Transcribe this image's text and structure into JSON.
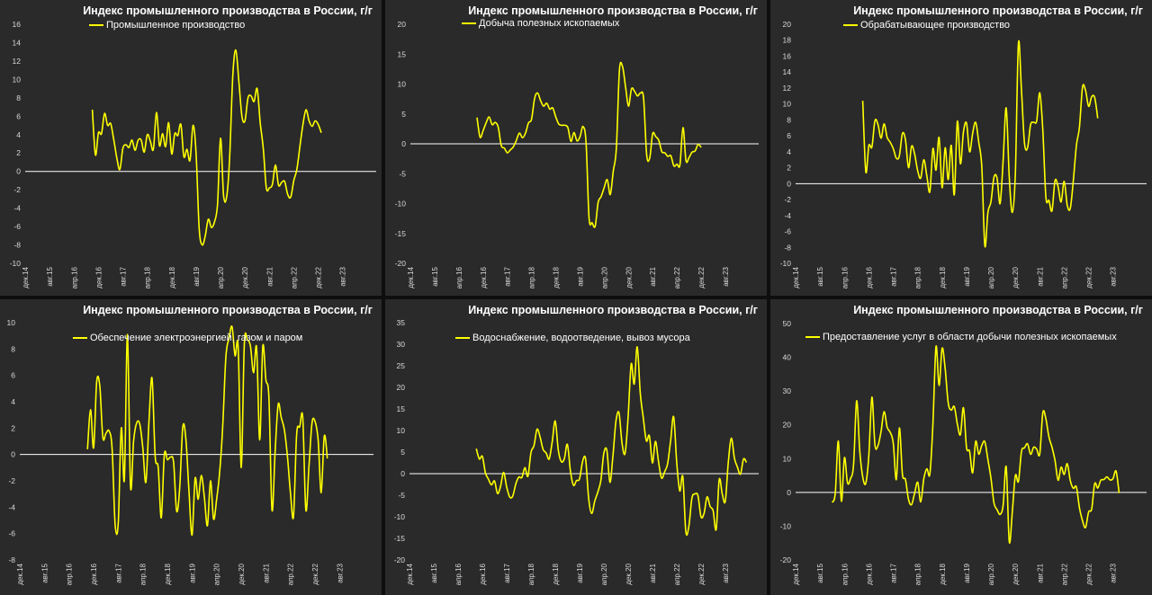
{
  "colors": {
    "line": "#ffff00",
    "zero": "#ffffff",
    "panel_bg": "#2a2a2a",
    "page_bg": "#0e0e0e",
    "text": "#ffffff"
  },
  "x_tick_labels": [
    "дек.14",
    "авг.15",
    "апр.16",
    "дек.16",
    "авг.17",
    "апр.18",
    "дек.18",
    "авг.19",
    "апр.20",
    "дек.20",
    "авг.21",
    "апр.22",
    "дек.22",
    "авг.23"
  ],
  "chart_data": [
    {
      "type": "line",
      "title": "Индекс промышленного производства в России, г/г",
      "legend": "Промышленное производство",
      "xlabel": "",
      "ylabel": "",
      "ylim": [
        -10,
        16
      ],
      "yticks": [
        -10,
        -8,
        -6,
        -4,
        -2,
        0,
        2,
        4,
        6,
        8,
        10,
        12,
        14,
        16
      ],
      "x_start": "дек.14",
      "x_end": "ноя.23",
      "series_start_index": 22,
      "series": [
        {
          "name": "Промышленное производство",
          "values": [
            6.7,
            1.8,
            4.2,
            4.1,
            6.3,
            5,
            5.2,
            3.5,
            1.5,
            0.2,
            2.5,
            2.9,
            2.6,
            3.4,
            2.3,
            3.4,
            3.4,
            2.1,
            4,
            3.3,
            2.4,
            6.4,
            2.8,
            4.1,
            2.7,
            5.3,
            1.9,
            4.1,
            3.9,
            5.1,
            1.6,
            2.4,
            1.2,
            5,
            1.9,
            -6.2,
            -8,
            -7,
            -5.2,
            -6.1,
            -5.5,
            -3.6,
            3.6,
            -2.6,
            -2.8,
            1.6,
            10.3,
            13.2,
            9.8,
            6,
            5.5,
            8,
            8.2,
            7.6,
            9,
            5.3,
            2.5,
            -1.8,
            -1.8,
            -1.4,
            0.7,
            -1.5,
            -1.2,
            -1.1,
            -2.5,
            -2.8,
            -1,
            0.2,
            2.7,
            5.1,
            6.7,
            5.5,
            4.9,
            5.5,
            5.1,
            4.2
          ]
        }
      ]
    },
    {
      "type": "line",
      "title": "Индекс промышленного производства в России, г/г",
      "legend": "Добыча полезных ископаемых",
      "xlabel": "",
      "ylabel": "",
      "ylim": [
        -20,
        20
      ],
      "yticks": [
        -20,
        -15,
        -10,
        -5,
        0,
        5,
        10,
        15,
        20
      ],
      "x_start": "дек.14",
      "x_end": "ноя.23",
      "series_start_index": 22,
      "series": [
        {
          "name": "Добыча полезных ископаемых",
          "values": [
            4.4,
            1.1,
            2.2,
            3.5,
            4.5,
            3.2,
            3.6,
            2.8,
            -0.3,
            -0.7,
            -1.5,
            -1,
            -0.5,
            0.6,
            1.8,
            1,
            1.8,
            3.5,
            4.1,
            7.6,
            8.5,
            7.2,
            6.3,
            6.8,
            5.8,
            6,
            4.5,
            3.3,
            3.1,
            3.1,
            2.7,
            0.4,
            1.9,
            0.5,
            1.2,
            2.9,
            0.2,
            -12.4,
            -13.2,
            -13.8,
            -9.8,
            -8.8,
            -7.3,
            -6,
            -8.5,
            -4.5,
            -0.8,
            12.2,
            13,
            9.7,
            6.3,
            9.2,
            8.8,
            8,
            8.5,
            7.6,
            -1.8,
            -2.4,
            1.7,
            1.2,
            0.6,
            -1.3,
            -1.5,
            -2.1,
            -2,
            -3.7,
            -3.4,
            -3.5,
            2.7,
            -2.8,
            -2.3,
            -1.4,
            -1.2,
            -0.1,
            -0.6
          ]
        }
      ]
    },
    {
      "type": "line",
      "title": "Индекс промышленного производства в России, г/г",
      "legend": "Обрабатывающее производство",
      "xlabel": "",
      "ylabel": "",
      "ylim": [
        -10,
        20
      ],
      "yticks": [
        -10,
        -8,
        -6,
        -4,
        -2,
        0,
        2,
        4,
        6,
        8,
        10,
        12,
        14,
        16,
        18,
        20
      ],
      "x_start": "дек.14",
      "x_end": "ноя.23",
      "series_start_index": 22,
      "series": [
        {
          "name": "Обрабатывающее производство",
          "values": [
            10.4,
            1.5,
            4.8,
            4.6,
            7.9,
            7.4,
            5.7,
            7.5,
            5.8,
            5.2,
            4.4,
            3.2,
            3.5,
            6.3,
            5.5,
            2,
            4.7,
            3.7,
            1.6,
            0.7,
            3,
            1,
            -1,
            4.4,
            1.7,
            5.8,
            -0.5,
            4.5,
            0.5,
            4.8,
            -1.4,
            7.8,
            2.5,
            6.5,
            7.6,
            4,
            6.3,
            7.7,
            5.2,
            2.1,
            -7.8,
            -3.6,
            -2.3,
            0.8,
            0.7,
            -2.5,
            2.9,
            9.5,
            0.8,
            -3.6,
            1.3,
            17.6,
            11.7,
            5.1,
            4.5,
            7.4,
            7.7,
            7.9,
            11.4,
            6.7,
            -1.7,
            -2.1,
            -3.4,
            0.4,
            -0.4,
            -2.3,
            0.3,
            -2.7,
            -3.1,
            0.4,
            4.8,
            7.1,
            12.1,
            11.7,
            9.7,
            10.9,
            10.8,
            8.2
          ]
        }
      ]
    },
    {
      "type": "line",
      "title": "Индекс промышленного производства в России, г/г",
      "legend": "Обеспечение электроэнергией, газом и паром",
      "xlabel": "",
      "ylabel": "",
      "ylim": [
        -8,
        10
      ],
      "yticks": [
        -8,
        -6,
        -4,
        -2,
        0,
        2,
        4,
        6,
        8,
        10
      ],
      "x_start": "дек.14",
      "x_end": "ноя.23",
      "series_start_index": 22,
      "series": [
        {
          "name": "Обеспечение электроэнергией, газом и паром",
          "values": [
            0.4,
            3.4,
            0.5,
            5.5,
            5.2,
            1.3,
            1.6,
            1.8,
            0.5,
            -5.3,
            -5.2,
            2,
            -1.9,
            9.1,
            -2.4,
            1,
            2.4,
            2.3,
            0.5,
            -2.1,
            2.5,
            5.8,
            -0.1,
            -1,
            -4.8,
            0,
            -0.4,
            -0.2,
            -0.6,
            -4.3,
            -2.5,
            2.1,
            1.2,
            -2.8,
            -6.1,
            -1.8,
            -3.4,
            -1.6,
            -3.2,
            -5.4,
            -2,
            -4.9,
            -3.4,
            -1.3,
            2.2,
            7.4,
            8.8,
            9.7,
            7.5,
            8.2,
            -1,
            8.4,
            8.7,
            8.2,
            6.2,
            8.1,
            1.1,
            8.2,
            5.7,
            4.3,
            -4.2,
            0.1,
            3.8,
            2.8,
            1.9,
            -0.1,
            -2.9,
            -4.7,
            1.5,
            2.1,
            2.8,
            -4.2,
            -1,
            2.4,
            2.5,
            1.1,
            -2.9,
            1.4,
            -0.3
          ]
        }
      ]
    },
    {
      "type": "line",
      "title": "Индекс промышленного производства в России, г/г",
      "legend": "Водоснабжение, водоотведение, вывоз мусора",
      "xlabel": "",
      "ylabel": "",
      "ylim": [
        -20,
        35
      ],
      "yticks": [
        -20,
        -15,
        -10,
        -5,
        0,
        5,
        10,
        15,
        20,
        25,
        30,
        35
      ],
      "x_start": "дек.14",
      "x_end": "ноя.23",
      "series_start_index": 22,
      "series": [
        {
          "name": "Водоснабжение, водоотведение, вывоз мусора",
          "values": [
            5.8,
            3.4,
            4,
            0.2,
            -1.3,
            -2.6,
            -1.7,
            -4.6,
            -2.9,
            0.3,
            -3.1,
            -5.4,
            -5.2,
            -2.4,
            -0.8,
            -0.9,
            1.4,
            -0.6,
            4.9,
            6.5,
            10.3,
            8.5,
            5.6,
            4.8,
            3.4,
            7.4,
            12.2,
            5.5,
            2.8,
            3.5,
            6.8,
            0.6,
            -2.7,
            -1.6,
            -1.2,
            2.8,
            3.4,
            -5.8,
            -9.2,
            -6.4,
            -4.3,
            -1.6,
            4.7,
            5.4,
            -2,
            4.2,
            12.2,
            14.1,
            7,
            4.7,
            13.1,
            25.4,
            20.8,
            29.4,
            18.7,
            12.9,
            7.6,
            8.8,
            2.5,
            7.5,
            2.8,
            -1,
            0.4,
            2.3,
            7.7,
            13.2,
            2.6,
            -4,
            -0.7,
            -13.4,
            -12.2,
            -5.7,
            -4.7,
            -5.1,
            -10,
            -9.2,
            -5.4,
            -7.6,
            -8.6,
            -12.9,
            -1.4,
            -4.7,
            -6.4,
            2.8,
            8.2,
            3.6,
            1.5,
            -0.1,
            3.4,
            2.6
          ]
        }
      ]
    },
    {
      "type": "line",
      "title": "Индекс промышленного производства в России, г/г",
      "legend": "Предоставление услуг в области добычи полезных ископаемых",
      "xlabel": "",
      "ylabel": "",
      "ylim": [
        -20,
        50
      ],
      "yticks": [
        -20,
        -10,
        0,
        10,
        20,
        30,
        40,
        50
      ],
      "x_start": "дек.14",
      "x_end": "ноя.23",
      "series_start_index": 12,
      "series": [
        {
          "name": "Предоставление услуг в области добычи полезных ископаемых",
          "values": [
            -3,
            -0.2,
            15.2,
            -2.6,
            10.3,
            2.8,
            4.1,
            8.2,
            27.1,
            12.6,
            4.6,
            2.7,
            11.1,
            28.2,
            14,
            13.9,
            18.1,
            23.9,
            19.3,
            17.8,
            14.6,
            3.8,
            19.1,
            5.4,
            3.8,
            -2.1,
            -3.6,
            -0.2,
            3,
            -2.8,
            4,
            7,
            5.5,
            20.4,
            43.2,
            31.7,
            42.7,
            36.7,
            26.5,
            24.4,
            25.4,
            20.3,
            17.1,
            25.1,
            13.3,
            12.2,
            5.8,
            15.1,
            11.3,
            13.9,
            15,
            9.7,
            4.3,
            -3.1,
            -5.1,
            -6.5,
            -3.8,
            7.6,
            -14.6,
            -5.8,
            5,
            3.2,
            12.1,
            13.2,
            14.4,
            11.3,
            13.4,
            12.8,
            11.4,
            23.6,
            21.8,
            16.4,
            13.4,
            9.4,
            3.6,
            7.5,
            5.3,
            8.5,
            3.5,
            1.2,
            1.6,
            -4.6,
            -8.4,
            -10.4,
            -5.8,
            -4.9,
            2.6,
            1.3,
            3.6,
            3.8,
            4.6,
            3.7,
            4.1,
            6.3,
            -0.2
          ]
        }
      ]
    }
  ]
}
